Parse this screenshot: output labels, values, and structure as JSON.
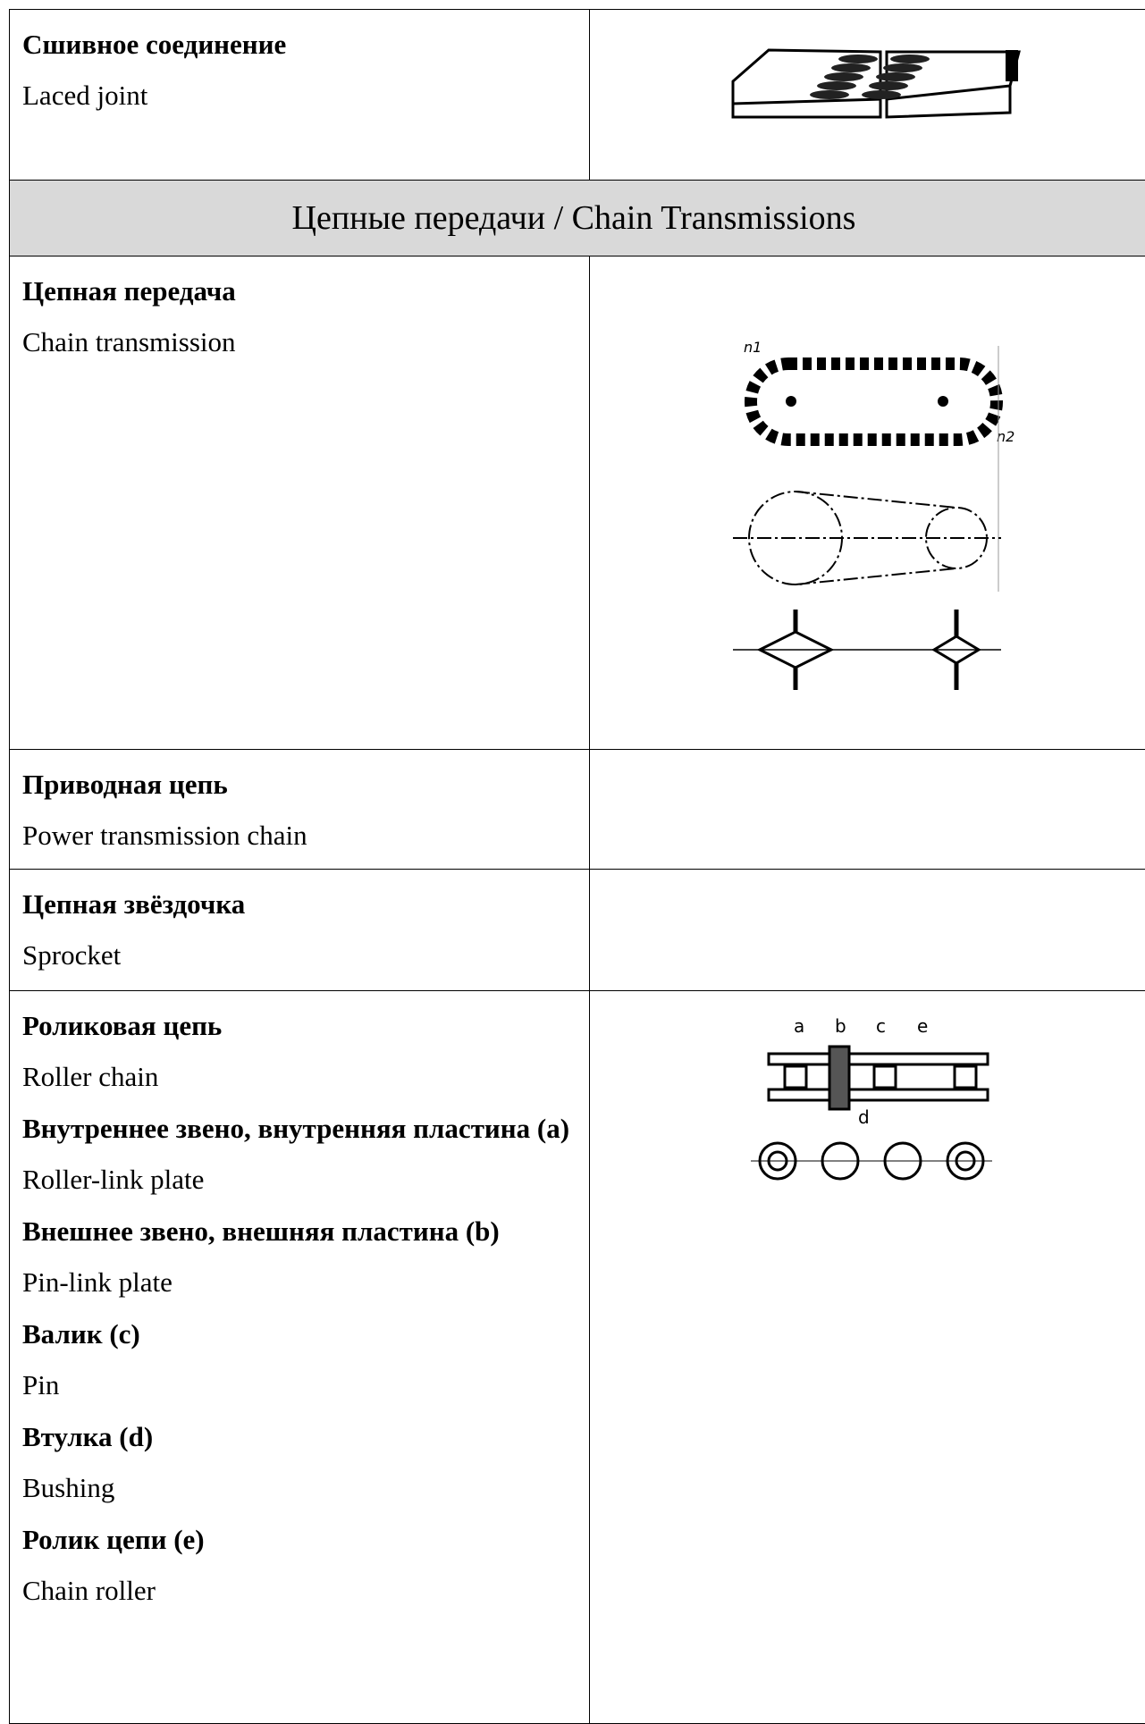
{
  "table": {
    "rows": [
      {
        "entries": [
          {
            "ru": "Сшивное соединение",
            "en": "Laced joint"
          }
        ]
      },
      {
        "header": "Цепные передачи / Chain Transmissions"
      },
      {
        "entries": [
          {
            "ru": "Цепная передача",
            "en": "Chain transmission"
          }
        ],
        "figure_labels": [
          "n1",
          "n2"
        ]
      },
      {
        "entries": [
          {
            "ru": "Приводная цепь",
            "en": "Power transmission chain"
          }
        ]
      },
      {
        "entries": [
          {
            "ru": "Цепная звёздочка",
            "en": "Sprocket"
          }
        ]
      },
      {
        "entries": [
          {
            "ru": "Роликовая цепь",
            "en": "Roller chain"
          },
          {
            "ru": "Внутреннее звено, внутренняя пластина (a)",
            "en": "Roller-link plate"
          },
          {
            "ru": "Внешнее звено, внешняя пластина (b)",
            "en": "Pin-link plate"
          },
          {
            "ru": "Валик (c)",
            "en": "Pin"
          },
          {
            "ru": "Втулка (d)",
            "en": "Bushing"
          },
          {
            "ru": "Ролик цепи (e)",
            "en": "Chain roller"
          }
        ],
        "figure_labels": [
          "a",
          "b",
          "c",
          "e",
          "d"
        ]
      }
    ]
  }
}
